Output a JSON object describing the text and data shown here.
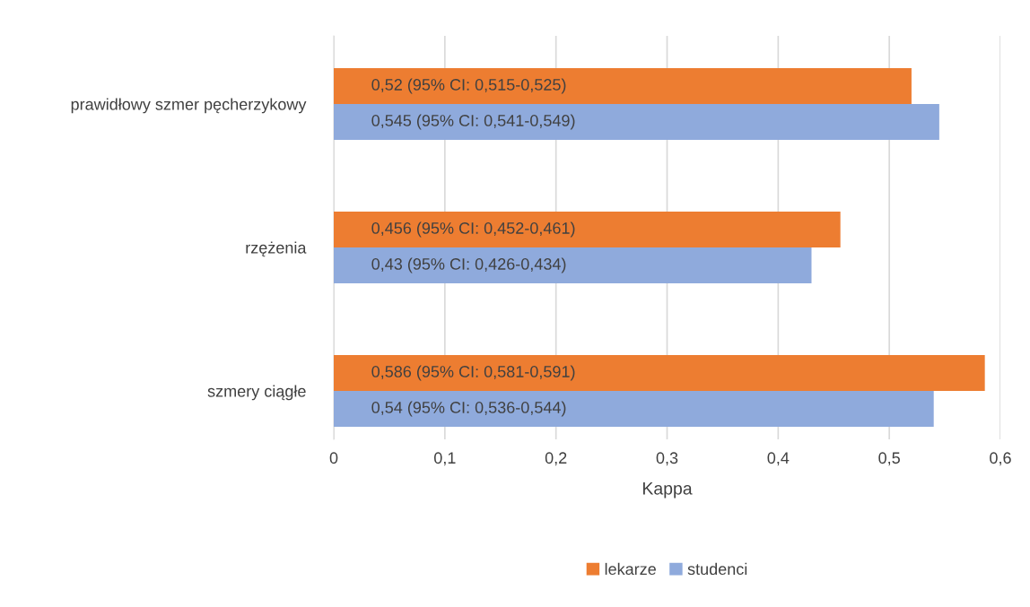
{
  "chart_data": {
    "type": "bar",
    "orientation": "horizontal",
    "xlabel": "Kappa",
    "categories": [
      "prawidłowy szmer pęcherzykowy",
      "rzężenia",
      "szmery ciągłe"
    ],
    "series": [
      {
        "name": "lekarze",
        "color": "#ed7d31",
        "values": [
          0.52,
          0.456,
          0.586
        ],
        "value_labels": [
          "0,52 (95% CI: 0,515-0,525)",
          "0,456 (95% CI: 0,452-0,461)",
          "0,586 (95% CI: 0,581-0,591)"
        ]
      },
      {
        "name": "studenci",
        "color": "#8faadc",
        "values": [
          0.545,
          0.43,
          0.54
        ],
        "value_labels": [
          "0,545 (95% CI: 0,541-0,549)",
          "0,43 (95% CI: 0,426-0,434)",
          "0,54 (95% CI: 0,536-0,544)"
        ]
      }
    ],
    "xlim": [
      0,
      0.6
    ],
    "xticks": [
      0,
      {
        "value": 0.1,
        "label": "0,1"
      },
      {
        "value": 0.2,
        "label": "0,2"
      },
      {
        "value": 0.3,
        "label": "0,3"
      },
      {
        "value": 0.4,
        "label": "0,4"
      },
      {
        "value": 0.5,
        "label": "0,5"
      },
      {
        "value": 0.6,
        "label": "0,6"
      }
    ],
    "grid": "x",
    "legend": "bottom"
  }
}
